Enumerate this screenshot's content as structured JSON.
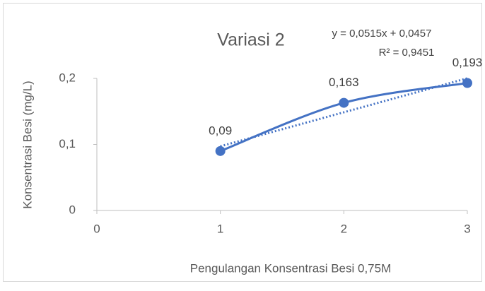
{
  "chart_data": {
    "type": "line",
    "title": "Variasi 2",
    "x_label": "Pengulangan Konsentrasi Besi 0,75M",
    "y_label": "Konsentrasi Besi (mg/L)",
    "x": [
      1,
      2,
      3
    ],
    "values": [
      0.09,
      0.163,
      0.193
    ],
    "value_labels": [
      "0,09",
      "0,163",
      "0,193"
    ],
    "color": "#4472c4",
    "xlim": [
      0,
      3
    ],
    "xticks": [
      0,
      1,
      2,
      3
    ],
    "ylim": [
      0,
      0.2
    ],
    "yticks": [
      0,
      {
        "value": 0.1,
        "label": "0,1"
      },
      {
        "value": 0.2,
        "label": "0,2"
      }
    ],
    "trendline": {
      "equation": "y = 0,0515x + 0,0457",
      "r_squared": "R² = 0,9451",
      "slope": 0.0515,
      "intercept": 0.0457
    }
  }
}
